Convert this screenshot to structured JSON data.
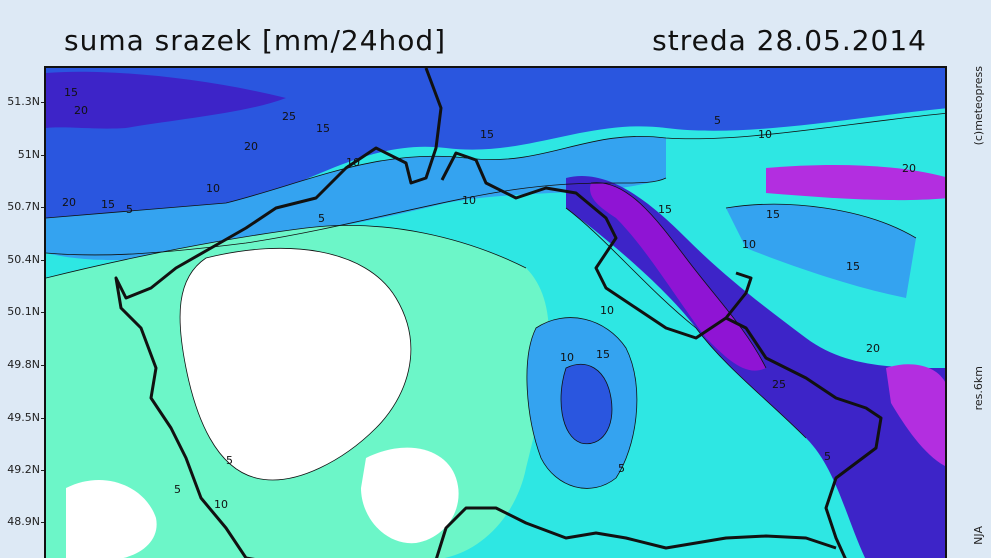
{
  "title": {
    "left": "suma srazek [mm/24hod]",
    "right": "streda 28.05.2014"
  },
  "latitudes": [
    "51.3N",
    "51N",
    "50.7N",
    "50.4N",
    "50.1N",
    "49.8N",
    "49.5N",
    "49.2N",
    "48.9N"
  ],
  "credit": "(c)meteopress",
  "resolution": "res.6km",
  "org": "NJA",
  "contour_labels": [
    "5",
    "10",
    "15",
    "20",
    "25"
  ],
  "colors": {
    "none": "#ffffff",
    "light": "#6cf6c8",
    "mid": "#2ee7e3",
    "blue": "#34a3f0",
    "deep": "#2a56df",
    "violet": "#3d24c8",
    "purple": "#8f14d4",
    "magenta": "#b32ee0",
    "border": "#111111"
  }
}
